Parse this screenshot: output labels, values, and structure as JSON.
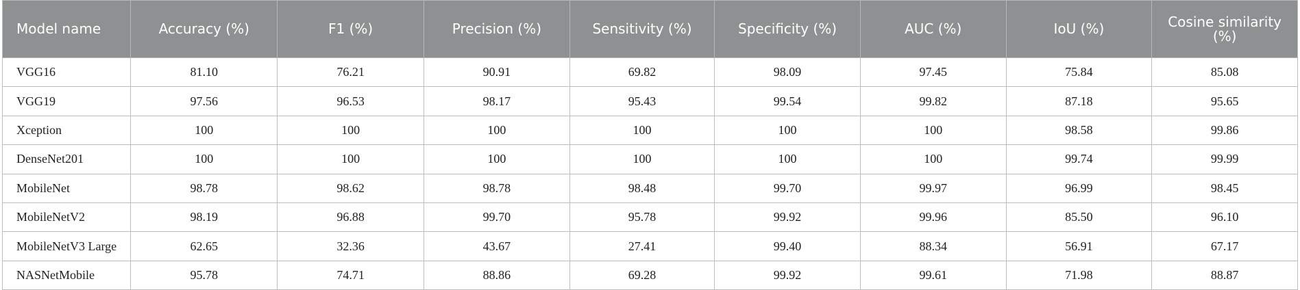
{
  "table": {
    "headers": [
      "Model name",
      "Accuracy (%)",
      "F1 (%)",
      "Precision (%)",
      "Sensitivity (%)",
      "Specificity (%)",
      "AUC (%)",
      "IoU (%)",
      "Cosine similarity (%)"
    ],
    "rows": [
      [
        "VGG16",
        "81.10",
        "76.21",
        "90.91",
        "69.82",
        "98.09",
        "97.45",
        "75.84",
        "85.08"
      ],
      [
        "VGG19",
        "97.56",
        "96.53",
        "98.17",
        "95.43",
        "99.54",
        "99.82",
        "87.18",
        "95.65"
      ],
      [
        "Xception",
        "100",
        "100",
        "100",
        "100",
        "100",
        "100",
        "98.58",
        "99.86"
      ],
      [
        "DenseNet201",
        "100",
        "100",
        "100",
        "100",
        "100",
        "100",
        "99.74",
        "99.99"
      ],
      [
        "MobileNet",
        "98.78",
        "98.62",
        "98.78",
        "98.48",
        "99.70",
        "99.97",
        "96.99",
        "98.45"
      ],
      [
        "MobileNetV2",
        "98.19",
        "96.88",
        "99.70",
        "95.78",
        "99.92",
        "99.96",
        "85.50",
        "96.10"
      ],
      [
        "MobileNetV3 Large",
        "62.65",
        "32.36",
        "43.67",
        "27.41",
        "99.40",
        "88.34",
        "56.91",
        "67.17"
      ],
      [
        "NASNetMobile",
        "95.78",
        "74.71",
        "88.86",
        "69.28",
        "99.92",
        "99.61",
        "71.98",
        "88.87"
      ]
    ]
  },
  "colors": {
    "header_background": "#8e9191",
    "header_text": "#ffffff",
    "border": "#bdbdbd"
  }
}
